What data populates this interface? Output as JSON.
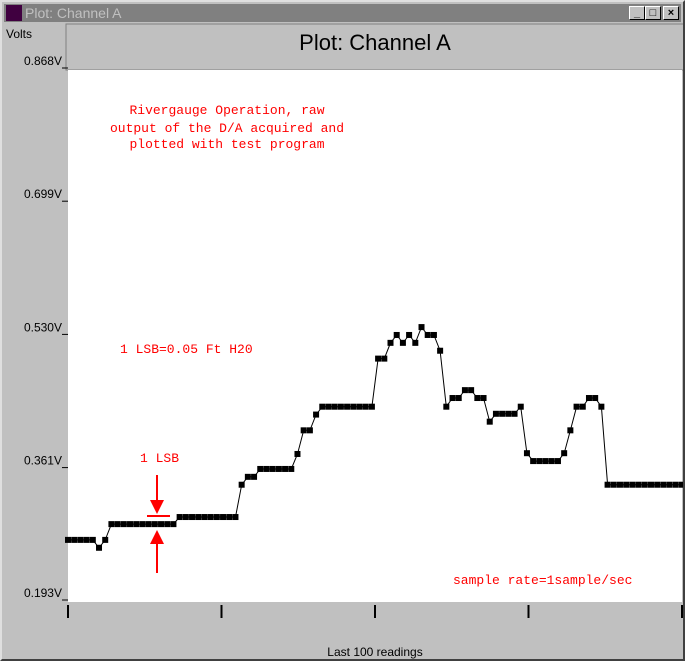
{
  "window": {
    "title": "Plot: Channel A",
    "buttons": [
      "minimize",
      "maximize",
      "close"
    ]
  },
  "chart_data": {
    "type": "line",
    "title": "Plot: Channel A",
    "ylabel": "Volts",
    "xlabel": "Last 100 readings",
    "ylim": [
      0.193,
      0.868
    ],
    "yticks": [
      "0.868V",
      "0.699V",
      "0.530V",
      "0.361V",
      "0.193V"
    ],
    "ytick_values": [
      0.868,
      0.699,
      0.53,
      0.361,
      0.193
    ],
    "xlim": [
      1,
      100
    ],
    "grid": false,
    "line_color": "#000000",
    "annotation_color": "#ff0000",
    "annotations": {
      "description": [
        "Rivergauge Operation, raw",
        "output of the D/A acquired and",
        "plotted with test program"
      ],
      "lsb_scale": "1 LSB=0.05 Ft H20",
      "lsb_marker": "1 LSB",
      "sample_rate": "sample rate=1sample/sec"
    },
    "values": [
      0.268,
      0.268,
      0.268,
      0.268,
      0.268,
      0.258,
      0.268,
      0.288,
      0.288,
      0.288,
      0.288,
      0.288,
      0.288,
      0.288,
      0.288,
      0.288,
      0.288,
      0.288,
      0.297,
      0.297,
      0.297,
      0.297,
      0.297,
      0.297,
      0.297,
      0.297,
      0.297,
      0.297,
      0.338,
      0.348,
      0.348,
      0.358,
      0.358,
      0.358,
      0.358,
      0.358,
      0.358,
      0.377,
      0.407,
      0.407,
      0.427,
      0.437,
      0.437,
      0.437,
      0.437,
      0.437,
      0.437,
      0.437,
      0.437,
      0.437,
      0.498,
      0.498,
      0.518,
      0.528,
      0.518,
      0.528,
      0.518,
      0.538,
      0.528,
      0.528,
      0.508,
      0.437,
      0.448,
      0.448,
      0.458,
      0.458,
      0.448,
      0.448,
      0.418,
      0.428,
      0.428,
      0.428,
      0.428,
      0.437,
      0.378,
      0.368,
      0.368,
      0.368,
      0.368,
      0.368,
      0.378,
      0.407,
      0.437,
      0.437,
      0.448,
      0.448,
      0.437,
      0.338,
      0.338,
      0.338,
      0.338,
      0.338,
      0.338,
      0.338,
      0.338,
      0.338,
      0.338,
      0.338,
      0.338,
      0.338
    ]
  }
}
